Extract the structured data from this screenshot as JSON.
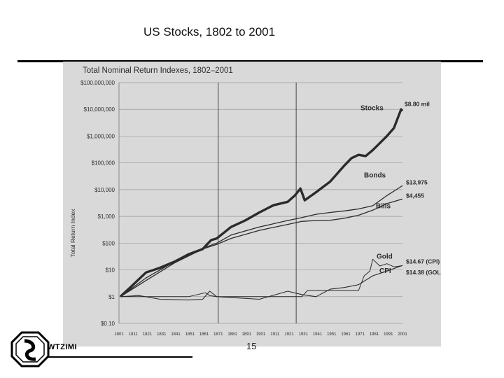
{
  "slide": {
    "title": "US Stocks, 1802 to 2001",
    "page_number": "15",
    "company": "WTZIMI"
  },
  "colors": {
    "scan_bg": "#d9d9d9",
    "ink": "#2b2b2b"
  },
  "chart_data": {
    "type": "line",
    "title": "Total Nominal Return Indexes, 1802–2001",
    "ylabel": "Total Return Index",
    "xlabel": "",
    "log_scale": true,
    "ylim": [
      0.1,
      100000000
    ],
    "xlim": [
      1801,
      2001
    ],
    "y_ticks": [
      {
        "v": 100000000,
        "label": "$100,000,000"
      },
      {
        "v": 10000000,
        "label": "$10,000,000"
      },
      {
        "v": 1000000,
        "label": "$1,000,000"
      },
      {
        "v": 100000,
        "label": "$100,000"
      },
      {
        "v": 10000,
        "label": "$10,000"
      },
      {
        "v": 1000,
        "label": "$1,000"
      },
      {
        "v": 100,
        "label": "$100"
      },
      {
        "v": 10,
        "label": "$10"
      },
      {
        "v": 1,
        "label": "$1"
      },
      {
        "v": 0.1,
        "label": "$0.10"
      }
    ],
    "x_ticks": [
      1801,
      1811,
      1821,
      1831,
      1841,
      1851,
      1861,
      1871,
      1881,
      1891,
      1901,
      1911,
      1921,
      1931,
      1941,
      1951,
      1961,
      1971,
      1981,
      1991,
      2001
    ],
    "grid": true,
    "vlines": [
      1871,
      1926
    ],
    "series": [
      {
        "name": "Stocks",
        "end_label": "$8.80 mil",
        "width": 3.4,
        "x": [
          1802,
          1810,
          1820,
          1830,
          1840,
          1850,
          1860,
          1866,
          1870,
          1880,
          1890,
          1900,
          1910,
          1920,
          1925,
          1929,
          1932,
          1940,
          1950,
          1960,
          1965,
          1970,
          1975,
          1980,
          1990,
          1995,
          2000,
          2001
        ],
        "y": [
          1,
          2.5,
          8,
          12,
          20,
          38,
          60,
          130,
          150,
          400,
          700,
          1400,
          2600,
          3500,
          6000,
          11000,
          4000,
          8000,
          20000,
          80000,
          150000,
          200000,
          180000,
          300000,
          1000000,
          2000000,
          10000000,
          8800000
        ]
      },
      {
        "name": "Bonds",
        "end_label": "$13,975",
        "width": 1.3,
        "x": [
          1802,
          1820,
          1840,
          1860,
          1870,
          1880,
          1900,
          1920,
          1930,
          1940,
          1950,
          1960,
          1970,
          1980,
          1990,
          2000,
          2001
        ],
        "y": [
          1,
          5,
          20,
          65,
          100,
          200,
          400,
          700,
          900,
          1200,
          1400,
          1600,
          1900,
          2500,
          6000,
          13000,
          13975
        ]
      },
      {
        "name": "Bills",
        "end_label": "$4,455",
        "width": 1.3,
        "x": [
          1802,
          1820,
          1840,
          1860,
          1870,
          1880,
          1900,
          1920,
          1930,
          1940,
          1950,
          1960,
          1970,
          1980,
          1990,
          2000,
          2001
        ],
        "y": [
          1,
          4,
          18,
          60,
          90,
          150,
          300,
          500,
          650,
          700,
          720,
          850,
          1100,
          1700,
          3000,
          4300,
          4455
        ]
      },
      {
        "name": "Gold",
        "end_label": "$14.67 (CPI)",
        "width": 1.0,
        "x": [
          1802,
          1850,
          1862,
          1865,
          1870,
          1930,
          1934,
          1970,
          1974,
          1978,
          1980,
          1985,
          1990,
          1995,
          2001
        ],
        "y": [
          1,
          1,
          1.4,
          1.1,
          1,
          1,
          1.7,
          1.7,
          6,
          9,
          25,
          14,
          17,
          13,
          14.38
        ]
      },
      {
        "name": "CPI",
        "end_label": "$14.38 (GOLD)",
        "width": 1.1,
        "x": [
          1802,
          1815,
          1830,
          1850,
          1860,
          1865,
          1870,
          1900,
          1920,
          1930,
          1940,
          1950,
          1960,
          1970,
          1980,
          1990,
          2001
        ],
        "y": [
          1,
          1.1,
          0.8,
          0.75,
          0.8,
          1.6,
          1,
          0.8,
          1.6,
          1.2,
          1,
          1.9,
          2.2,
          2.8,
          6,
          9,
          14.67
        ]
      }
    ]
  }
}
